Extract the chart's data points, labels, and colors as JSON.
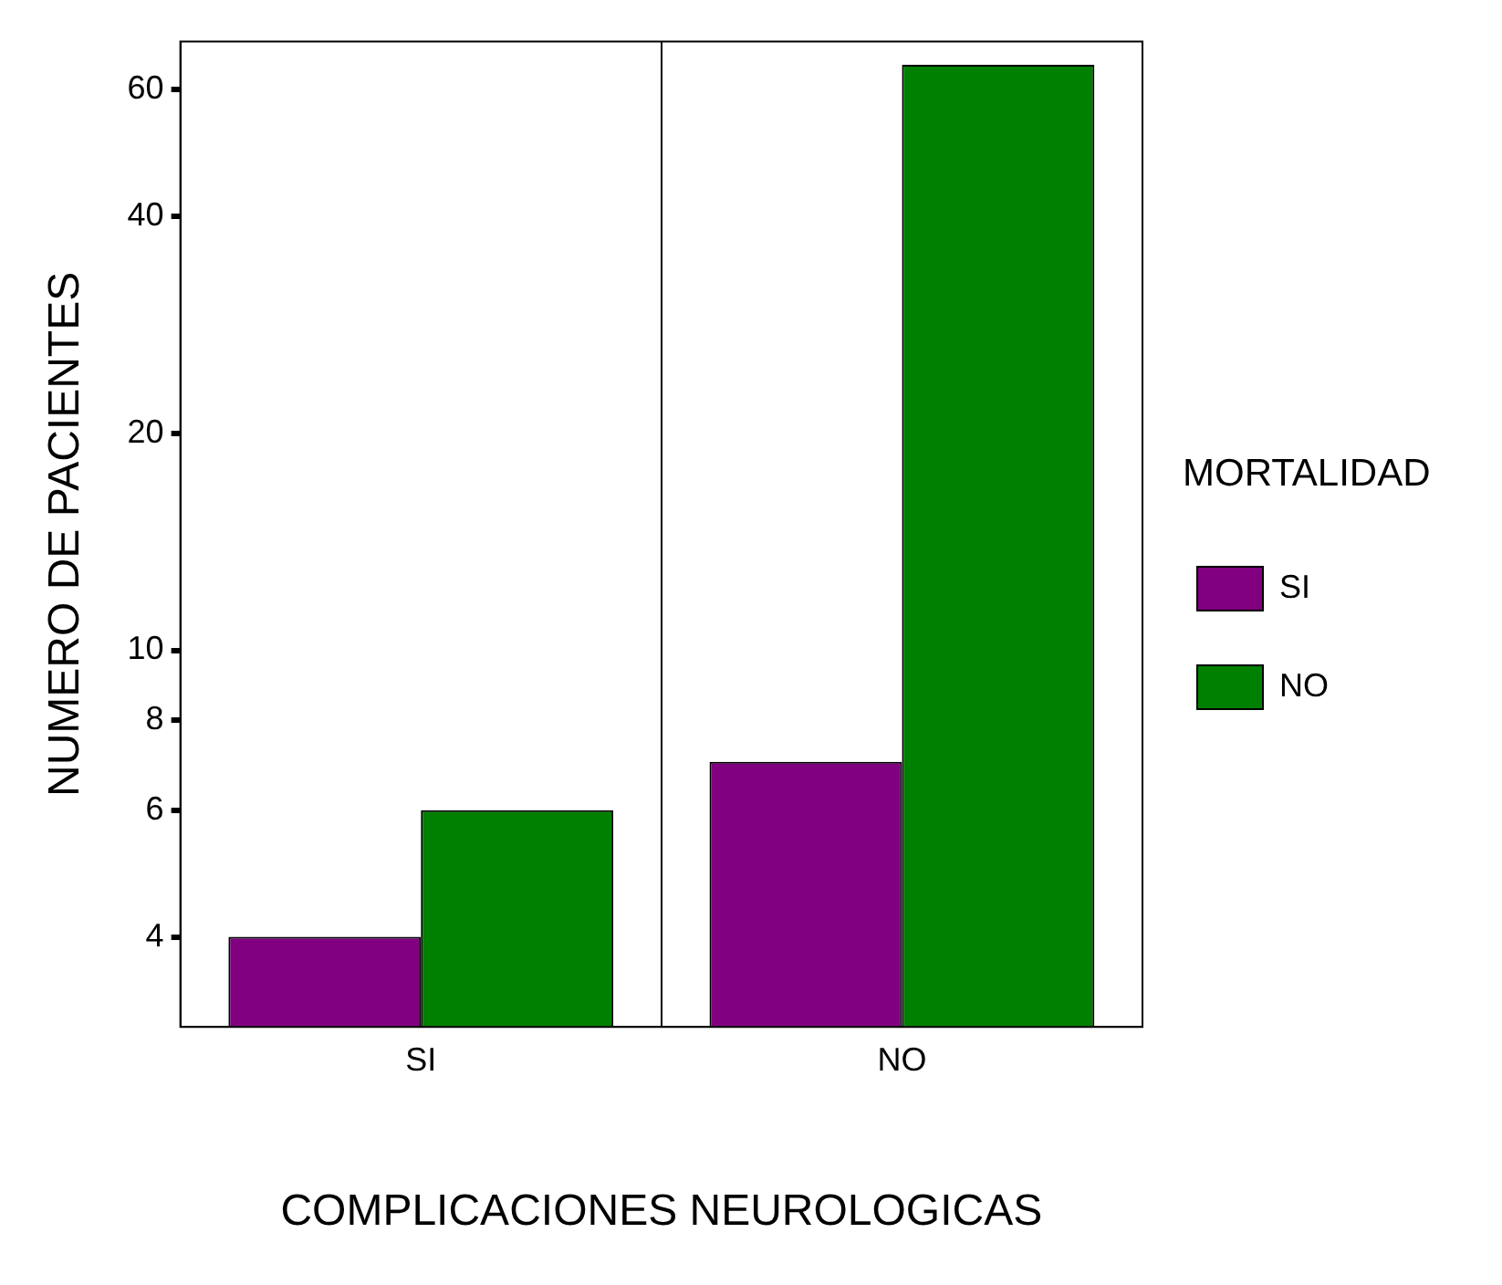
{
  "chart_data": {
    "type": "bar",
    "xlabel": "COMPLICACIONES NEUROLOGICAS",
    "ylabel": "NUMERO DE PACIENTES",
    "legend_title": "MORTALIDAD",
    "categories": [
      "SI",
      "NO"
    ],
    "series": [
      {
        "name": "SI",
        "color": "#800080",
        "values": [
          4,
          7
        ]
      },
      {
        "name": "NO",
        "color": "#008000",
        "values": [
          6,
          65
        ]
      }
    ],
    "log": "y",
    "ylim": [
      3,
      70
    ],
    "yticks": [
      4,
      6,
      8,
      10,
      20,
      40,
      60
    ],
    "grid": "x",
    "legend": "right"
  }
}
